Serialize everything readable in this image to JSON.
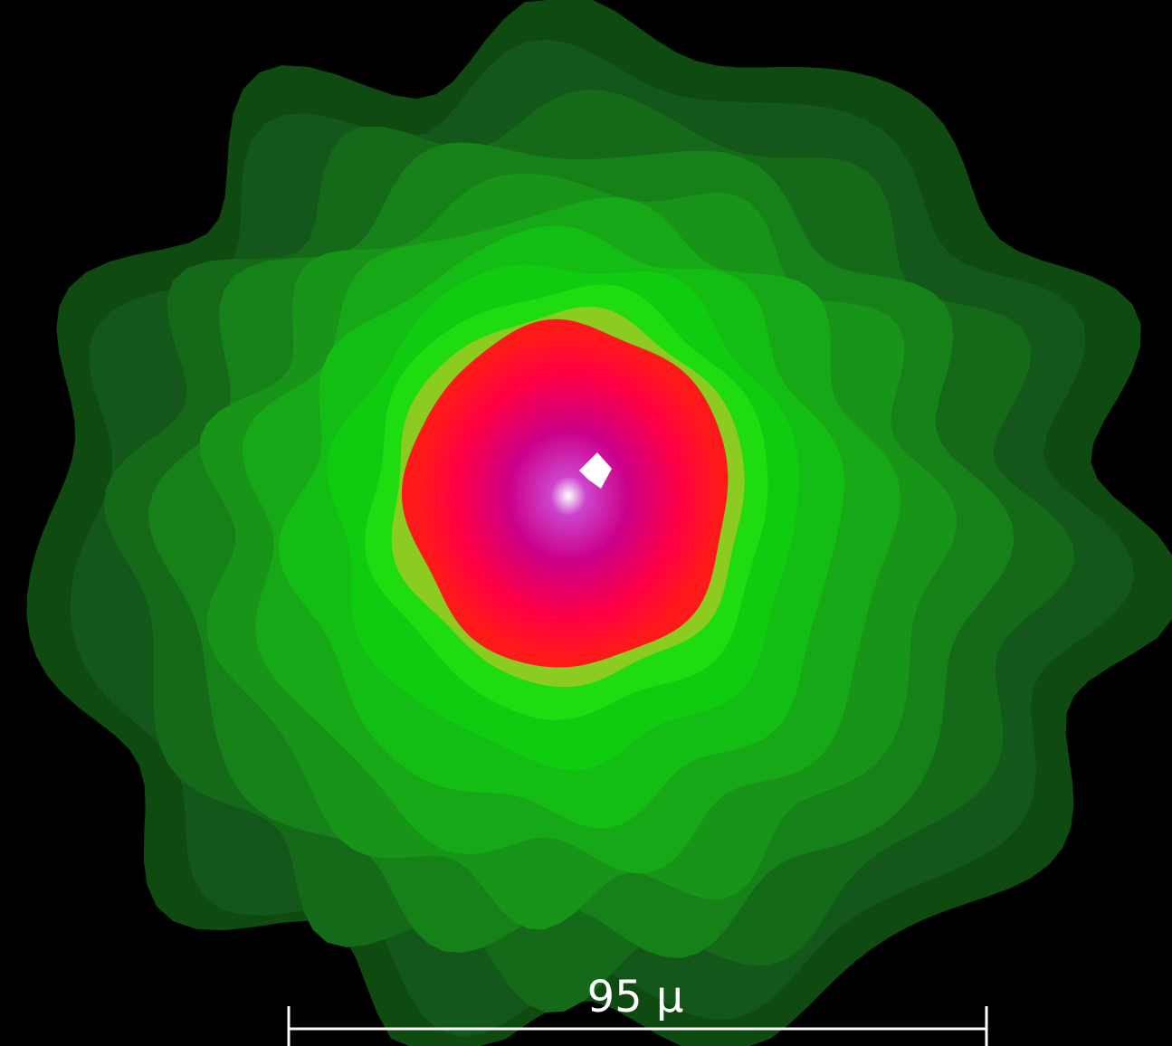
{
  "image": {
    "background_color": "#000000",
    "contour_colors": [
      "#0f4a10",
      "#13581a",
      "#146a18",
      "#168019",
      "#189419",
      "#17a818",
      "#14bd14",
      "#10cc10",
      "#1edc10",
      "#8ccc20",
      "#ff1a1a",
      "#ff0033",
      "#ee0066",
      "#cc0088",
      "#ffffff"
    ]
  },
  "scale_bar": {
    "label": "95 µ",
    "color": "#ffffff"
  }
}
